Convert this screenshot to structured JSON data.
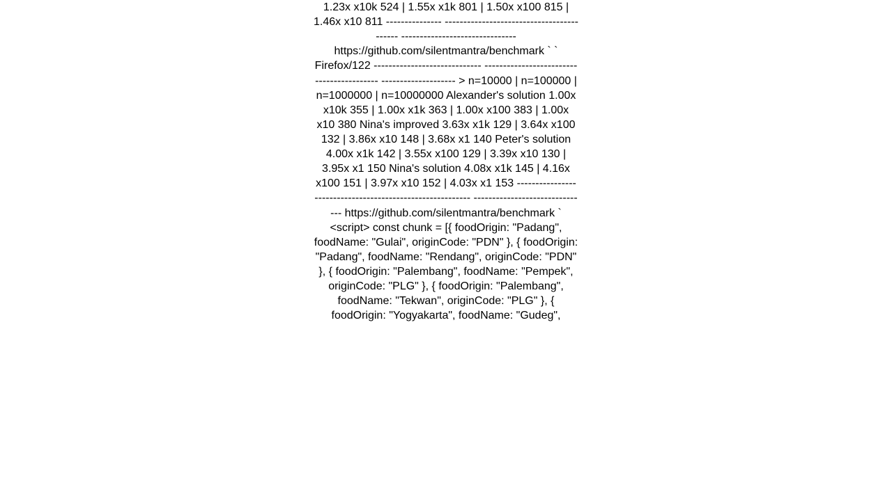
{
  "text_content": "1.23x x10k 524 | 1.55x x1k 801 | 1.50x x100 815 | 1.46x x10 811 --------------- ------------------------------------------ ------------------------------- https://github.com/silentmantra/benchmark `   ` Firefox/122 ----------------------------- ------------------------------------------ -------------------- >                     n=10000     |    n=100000    |   n=1000000    |   n=10000000   Alexander's solution   1.00x x10k 355 | 1.00x  x1k 363 | 1.00x x100 383 | 1.00x x10 380 Nina's improved        3.63x  x1k 129 | 3.64x x100 132 | 3.86x  x10 148 | 3.68x  x1 140 Peter's solution       4.00x  x1k 142 | 3.55x x100 129 | 3.39x  x10 130 | 3.95x  x1 150 Nina's solution        4.08x  x1k 145 | 4.16x x100 151 | 3.97x  x10 152 | 4.03x  x1 153 ---------------- ------------------------------------------ ------------------------------- https://github.com/silentmantra/benchmark `  <script>       const chunk = [{ foodOrigin: \"Padang\", foodName: \"Gulai\", originCode: \"PDN\" }, { foodOrigin: \"Padang\", foodName: \"Rendang\", originCode: \"PDN\" }, { foodOrigin: \"Palembang\", foodName: \"Pempek\", originCode: \"PLG\" }, { foodOrigin: \"Palembang\", foodName: \"Tekwan\", originCode: \"PLG\" }, { foodOrigin: \"Yogyakarta\", foodName: \"Gudeg\","
}
